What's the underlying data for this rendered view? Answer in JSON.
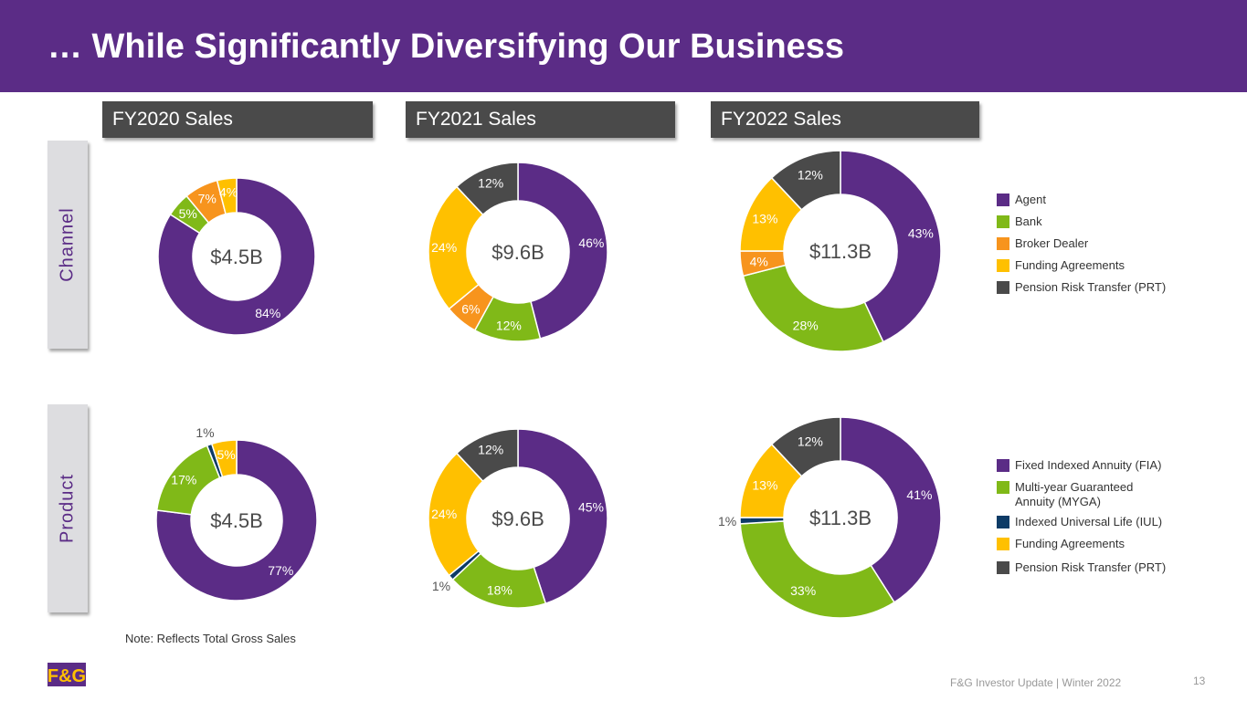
{
  "title": "… While Significantly Diversifying Our Business",
  "column_headers": [
    "FY2020 Sales",
    "FY2021 Sales",
    "FY2022 Sales"
  ],
  "row_labels": {
    "channel": "Channel",
    "product": "Product"
  },
  "colors": {
    "header_bg": "#5b2c86",
    "purple": "#5b2c86",
    "green": "#80b918",
    "orange": "#f7941d",
    "yellow": "#ffc000",
    "navy": "#0d3b66",
    "dark_gray": "#4a4a4a"
  },
  "legends": {
    "channel": [
      {
        "label": "Agent",
        "color": "#5b2c86"
      },
      {
        "label": "Bank",
        "color": "#80b918"
      },
      {
        "label": "Broker Dealer",
        "color": "#f7941d"
      },
      {
        "label": "Funding Agreements",
        "color": "#ffc000"
      },
      {
        "label": "Pension Risk Transfer (PRT)",
        "color": "#4a4a4a"
      }
    ],
    "product": [
      {
        "label": "Fixed Indexed Annuity (FIA)",
        "label2": "",
        "color": "#5b2c86"
      },
      {
        "label": "Multi-year Guaranteed",
        "label2": "Annuity (MYGA)",
        "color": "#80b918"
      },
      {
        "label": "Indexed Universal Life (IUL)",
        "label2": "",
        "color": "#0d3b66"
      },
      {
        "label": "Funding Agreements",
        "label2": "",
        "color": "#ffc000"
      },
      {
        "label": "Pension Risk Transfer (PRT)",
        "label2": "",
        "color": "#4a4a4a"
      }
    ]
  },
  "chart_data": [
    {
      "type": "pie",
      "title": "FY2020 Sales - Channel",
      "center_label": "$4.5B",
      "categories": [
        "Agent",
        "Bank",
        "Broker Dealer",
        "Funding Agreements"
      ],
      "values": [
        84,
        5,
        7,
        4
      ],
      "labels": [
        "84%",
        "5%",
        "7%",
        "4%"
      ]
    },
    {
      "type": "pie",
      "title": "FY2021 Sales - Channel",
      "center_label": "$9.6B",
      "categories": [
        "Agent",
        "Bank",
        "Broker Dealer",
        "Funding Agreements",
        "Pension Risk Transfer (PRT)"
      ],
      "values": [
        46,
        12,
        6,
        24,
        12
      ],
      "labels": [
        "46%",
        "12%",
        "6%",
        "24%",
        "12%"
      ]
    },
    {
      "type": "pie",
      "title": "FY2022 Sales - Channel",
      "center_label": "$11.3B",
      "categories": [
        "Agent",
        "Bank",
        "Broker Dealer",
        "Funding Agreements",
        "Pension Risk Transfer (PRT)"
      ],
      "values": [
        43,
        28,
        4,
        13,
        12
      ],
      "labels": [
        "43%",
        "28%",
        "4%",
        "13%",
        "12%"
      ]
    },
    {
      "type": "pie",
      "title": "FY2020 Sales - Product",
      "center_label": "$4.5B",
      "categories": [
        "Fixed Indexed Annuity (FIA)",
        "Multi-year Guaranteed Annuity (MYGA)",
        "Indexed Universal Life (IUL)",
        "Funding Agreements"
      ],
      "values": [
        77,
        17,
        1,
        5
      ],
      "labels": [
        "77%",
        "17%",
        "1%",
        "5%"
      ]
    },
    {
      "type": "pie",
      "title": "FY2021 Sales - Product",
      "center_label": "$9.6B",
      "categories": [
        "Fixed Indexed Annuity (FIA)",
        "Multi-year Guaranteed Annuity (MYGA)",
        "Indexed Universal Life (IUL)",
        "Funding Agreements",
        "Pension Risk Transfer (PRT)"
      ],
      "values": [
        45,
        18,
        1,
        24,
        12
      ],
      "labels": [
        "45%",
        "18%",
        "1%",
        "24%",
        "12%"
      ]
    },
    {
      "type": "pie",
      "title": "FY2022 Sales - Product",
      "center_label": "$11.3B",
      "categories": [
        "Fixed Indexed Annuity (FIA)",
        "Multi-year Guaranteed Annuity (MYGA)",
        "Indexed Universal Life (IUL)",
        "Funding Agreements",
        "Pension Risk Transfer (PRT)"
      ],
      "values": [
        41,
        33,
        1,
        13,
        12
      ],
      "labels": [
        "41%",
        "33%",
        "1%",
        "13%",
        "12%"
      ]
    }
  ],
  "note": "Note:  Reflects Total Gross Sales",
  "footer": "F&G Investor Update | Winter 2022",
  "page_number": "13",
  "logo_text": "F&G"
}
